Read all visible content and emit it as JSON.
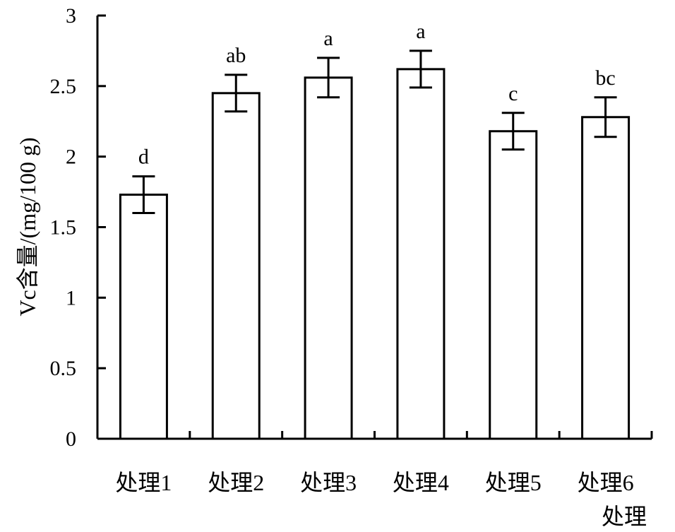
{
  "chart_data": {
    "type": "bar",
    "xlabel": "处理",
    "ylabel": "Vc含量/(mg/100 g)",
    "ylim": [
      0,
      3
    ],
    "yticks": [
      0,
      0.5,
      1,
      1.5,
      2,
      2.5,
      3
    ],
    "ytick_labels": [
      "0",
      "0.5",
      "1",
      "1.5",
      "2",
      "2.5",
      "3"
    ],
    "categories": [
      "处理1",
      "处理2",
      "处理3",
      "处理4",
      "处理5",
      "处理6"
    ],
    "values": [
      1.73,
      2.45,
      2.56,
      2.62,
      2.18,
      2.28
    ],
    "errors": [
      0.13,
      0.13,
      0.14,
      0.13,
      0.13,
      0.14
    ],
    "significance": [
      "d",
      "ab",
      "a",
      "a",
      "c",
      "bc"
    ],
    "grid": false,
    "bar_fill": "#ffffff",
    "bar_stroke": "#000000"
  }
}
